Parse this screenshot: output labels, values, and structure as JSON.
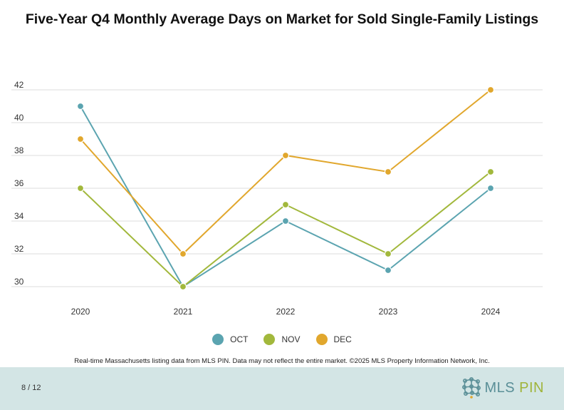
{
  "title": "Five-Year Q4 Monthly Average Days on Market for Sold Single-Family Listings",
  "chart_data": {
    "type": "line",
    "title": "Five-Year Q4 Monthly Average Days on Market for Sold Single-Family Listings",
    "x": [
      "2020",
      "2021",
      "2022",
      "2023",
      "2024"
    ],
    "y_ticks": [
      "30",
      "32",
      "34",
      "36",
      "38",
      "40",
      "42"
    ],
    "ylim": [
      30,
      42
    ],
    "grid": true,
    "legend_position": "bottom",
    "series": [
      {
        "name": "OCT",
        "color": "#5ba4b0",
        "values": [
          41,
          30,
          34,
          31,
          36
        ]
      },
      {
        "name": "NOV",
        "color": "#a2b83c",
        "values": [
          36,
          30,
          35,
          32,
          37
        ]
      },
      {
        "name": "DEC",
        "color": "#e1a72d",
        "values": [
          39,
          32,
          38,
          37,
          42
        ]
      }
    ]
  },
  "source_note": "Real-time Massachusetts listing data from MLS PIN. Data may not reflect the entire market. ©2025 MLS Property Information Network, Inc.",
  "footer": {
    "page_indicator": "8 / 12",
    "logo_mls": "MLS",
    "logo_pin": "PIN"
  }
}
